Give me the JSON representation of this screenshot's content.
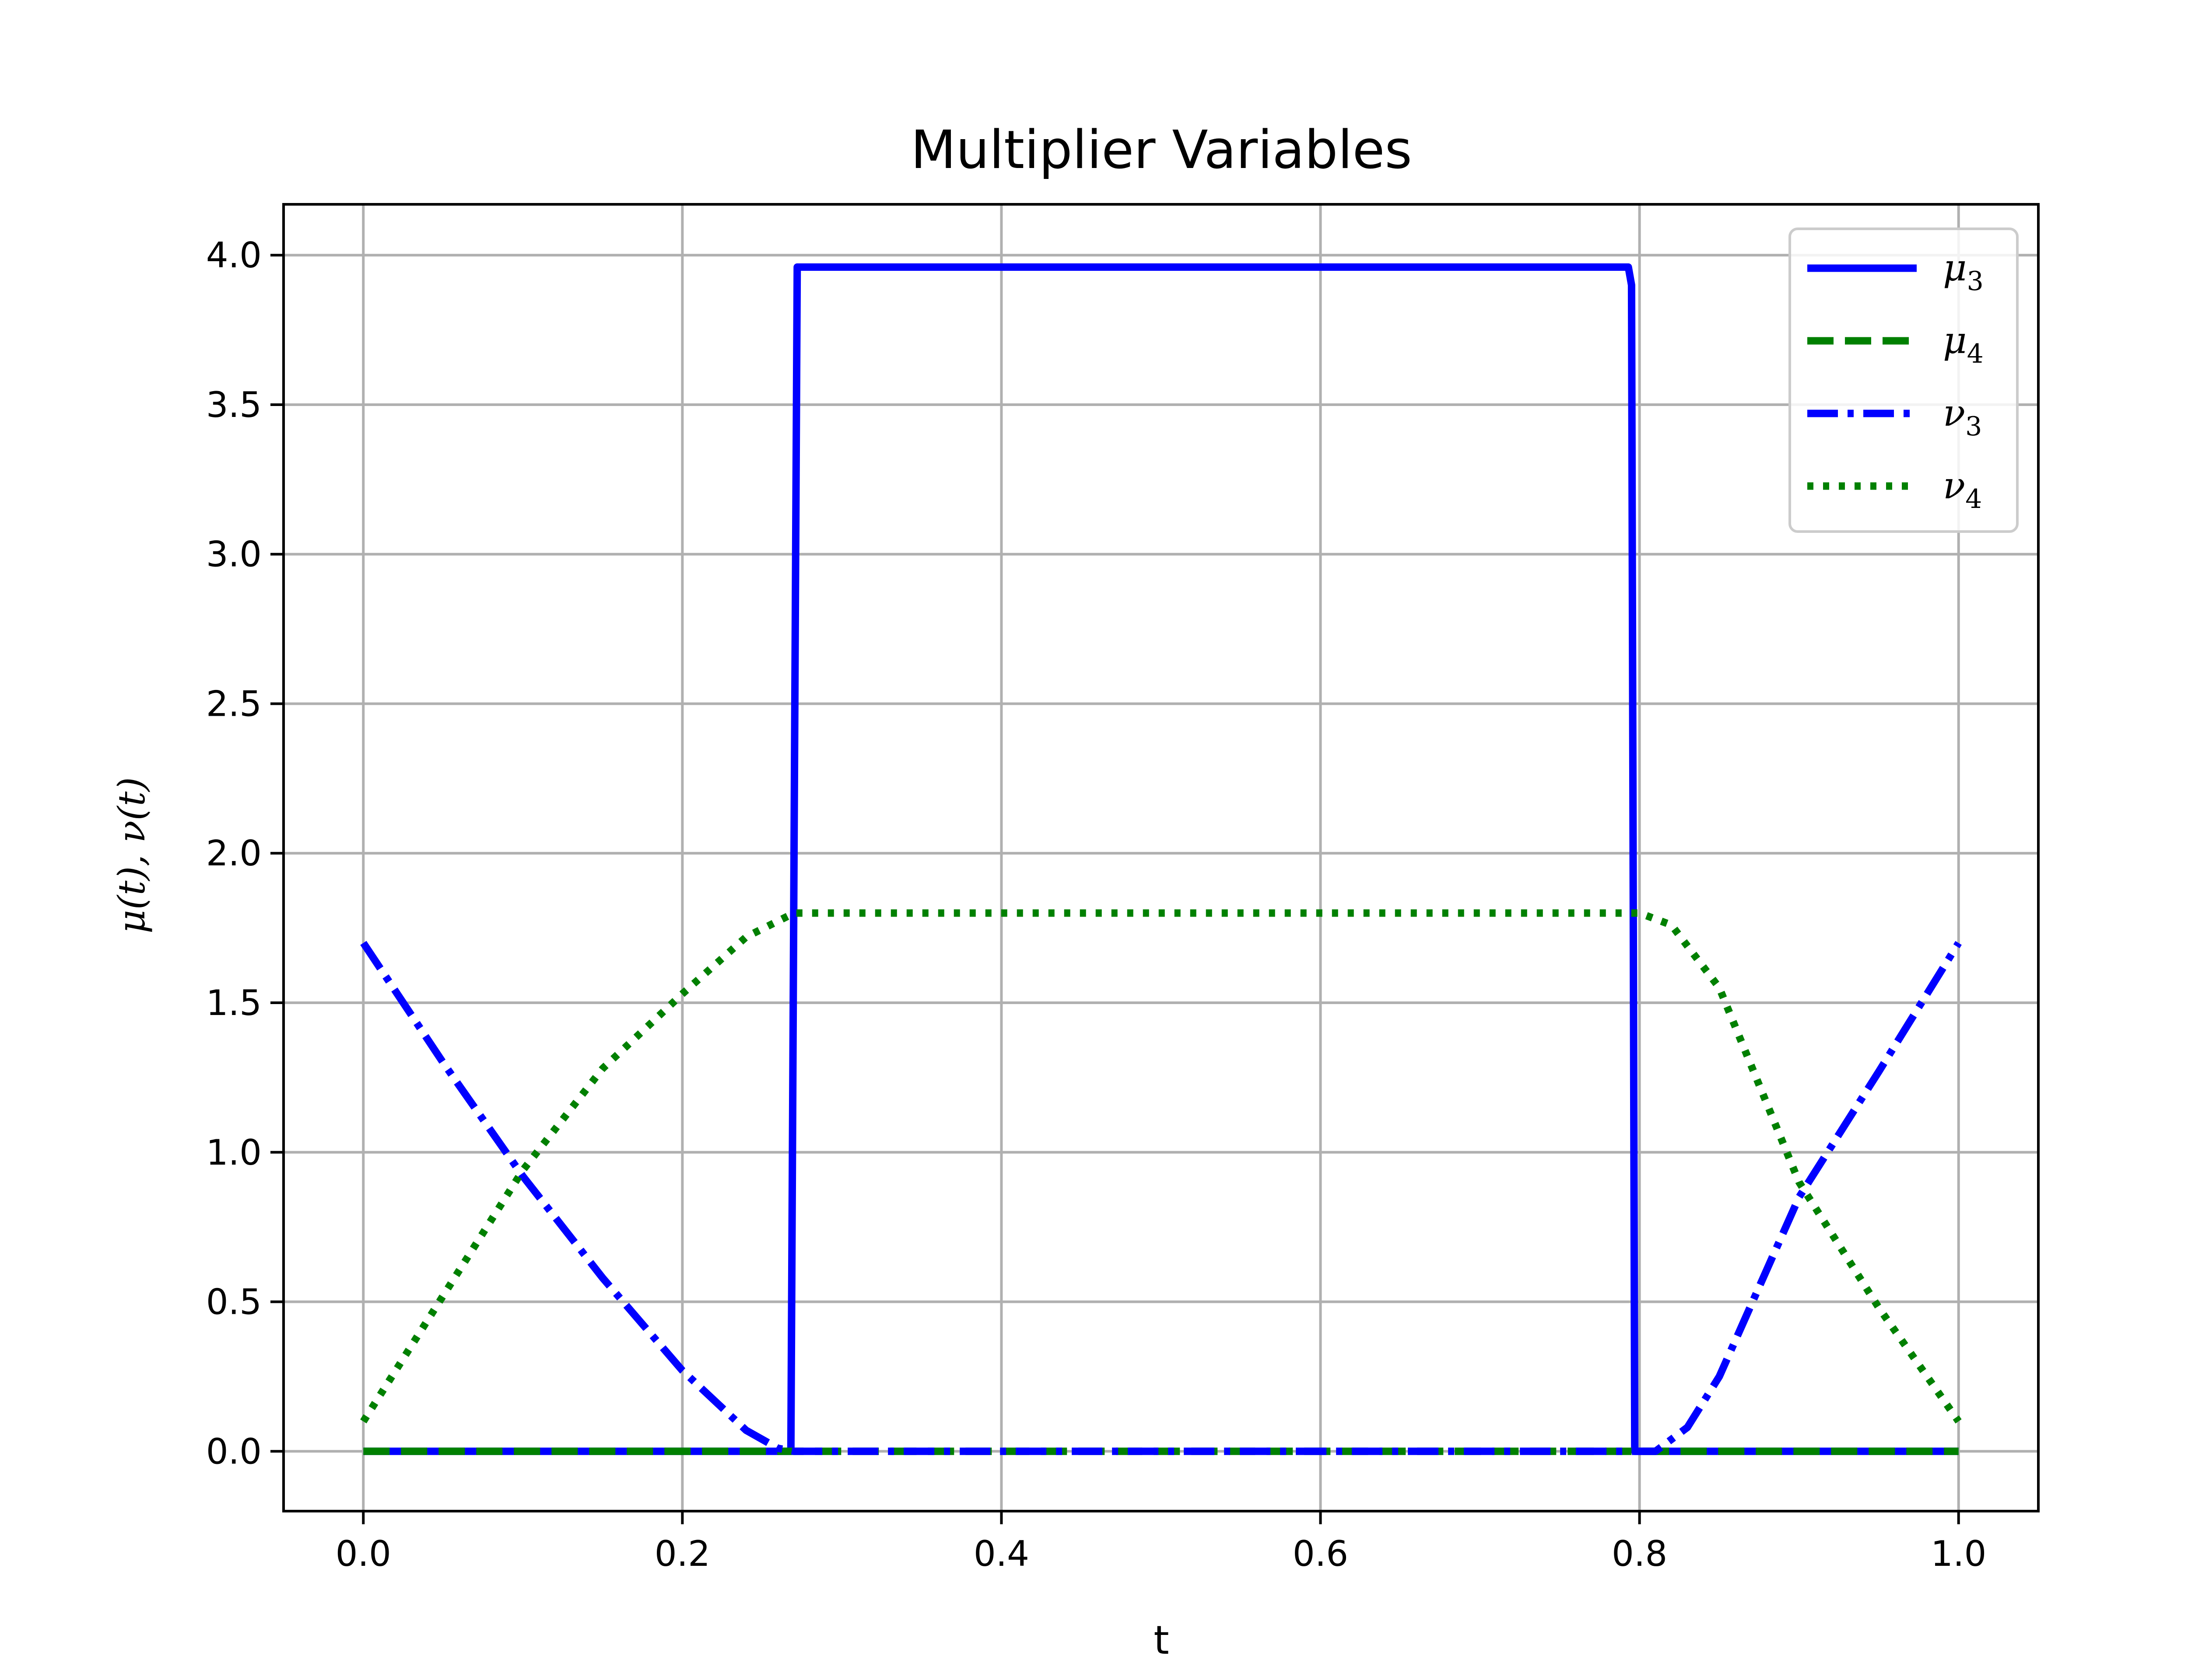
{
  "chart_data": {
    "type": "line",
    "title": "Multiplier Variables",
    "xlabel": "t",
    "ylabel": "μ(t), ν(t)",
    "xlim": [
      -0.05,
      1.05
    ],
    "ylim": [
      -0.2,
      4.17
    ],
    "xticks": [
      0.0,
      0.2,
      0.4,
      0.6,
      0.8,
      1.0
    ],
    "xtick_labels": [
      "0.0",
      "0.2",
      "0.4",
      "0.6",
      "0.8",
      "1.0"
    ],
    "yticks": [
      0.0,
      0.5,
      1.0,
      1.5,
      2.0,
      2.5,
      3.0,
      3.5,
      4.0
    ],
    "ytick_labels": [
      "0.0",
      "0.5",
      "1.0",
      "1.5",
      "2.0",
      "2.5",
      "3.0",
      "3.5",
      "4.0"
    ],
    "grid": true,
    "legend_position": "upper right",
    "series": [
      {
        "name": "μ3",
        "legend_base": "μ",
        "legend_sub": "3",
        "color": "#0000ff",
        "style": "solid",
        "x": [
          0.0,
          0.268,
          0.27,
          0.272,
          0.275,
          0.3,
          0.4,
          0.5,
          0.6,
          0.7,
          0.793,
          0.795,
          0.797,
          0.8,
          0.9,
          1.0
        ],
        "y": [
          0.0,
          0.0,
          2.0,
          3.96,
          3.96,
          3.96,
          3.96,
          3.96,
          3.96,
          3.96,
          3.96,
          3.9,
          0.0,
          0.0,
          0.0,
          0.0
        ]
      },
      {
        "name": "μ4",
        "legend_base": "μ",
        "legend_sub": "4",
        "color": "#008000",
        "style": "dashed",
        "x": [
          0.0,
          0.2,
          0.4,
          0.6,
          0.8,
          1.0
        ],
        "y": [
          0.0,
          0.0,
          0.0,
          0.0,
          0.0,
          0.0
        ]
      },
      {
        "name": "ν3",
        "legend_base": "ν",
        "legend_sub": "3",
        "color": "#0000ff",
        "style": "dashdot",
        "x": [
          0.0,
          0.05,
          0.1,
          0.15,
          0.2,
          0.24,
          0.26,
          0.27,
          0.3,
          0.4,
          0.5,
          0.6,
          0.7,
          0.8,
          0.81,
          0.83,
          0.85,
          0.9,
          0.95,
          1.0
        ],
        "y": [
          1.7,
          1.3,
          0.92,
          0.58,
          0.27,
          0.07,
          0.01,
          0.0,
          0.0,
          0.0,
          0.0,
          0.0,
          0.0,
          0.0,
          0.0,
          0.08,
          0.25,
          0.85,
          1.27,
          1.7
        ]
      },
      {
        "name": "ν4",
        "legend_base": "ν",
        "legend_sub": "4",
        "color": "#008000",
        "style": "dotted",
        "x": [
          0.0,
          0.05,
          0.1,
          0.15,
          0.2,
          0.24,
          0.27,
          0.3,
          0.4,
          0.5,
          0.6,
          0.7,
          0.8,
          0.82,
          0.85,
          0.9,
          0.95,
          1.0
        ],
        "y": [
          0.1,
          0.52,
          0.94,
          1.28,
          1.53,
          1.72,
          1.8,
          1.8,
          1.8,
          1.8,
          1.8,
          1.8,
          1.8,
          1.76,
          1.55,
          0.9,
          0.48,
          0.1
        ]
      }
    ]
  }
}
